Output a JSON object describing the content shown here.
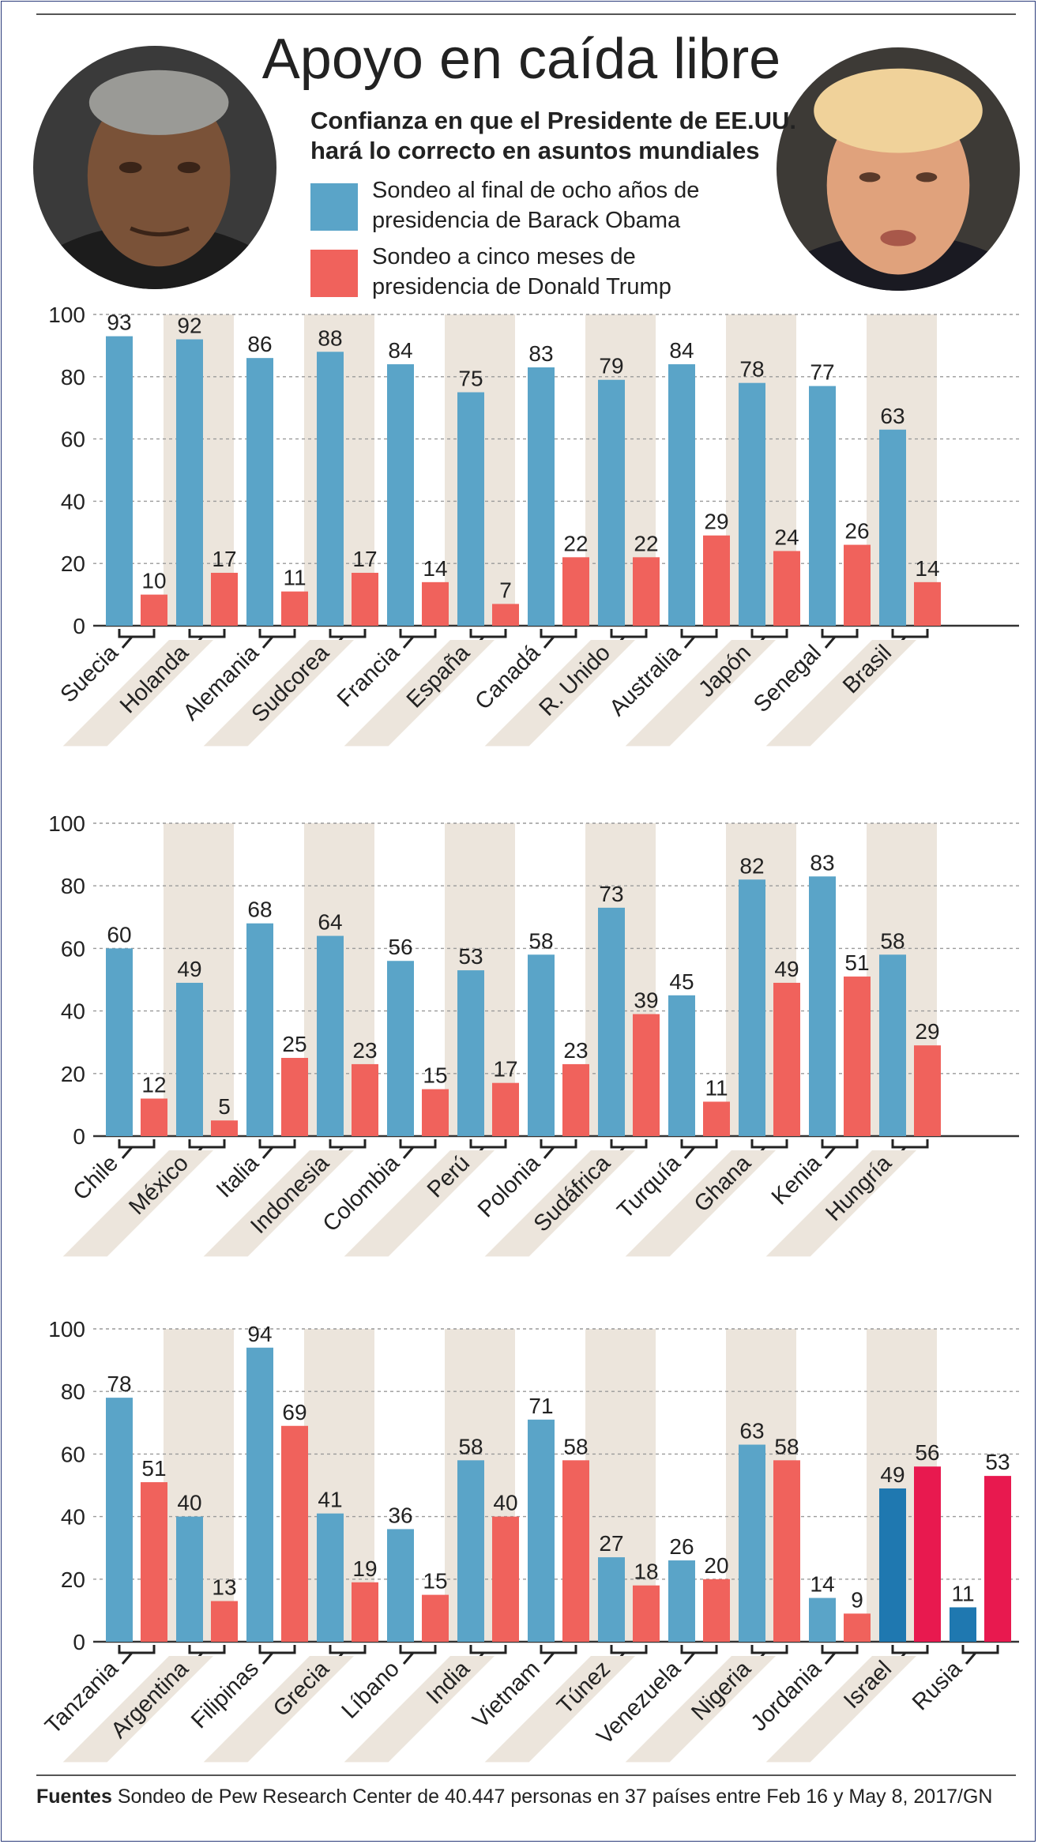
{
  "header": {
    "title": "Apoyo en caída libre",
    "subtitle_line1": "Confianza en que el Presidente de EE.UU.",
    "subtitle_line2": "hará lo correcto en asuntos mundiales"
  },
  "legend": [
    {
      "line1": "Sondeo al final de ocho años de",
      "line2": "presidencia de Barack Obama",
      "color": "#5aa4c8"
    },
    {
      "line1": "Sondeo a cinco meses de",
      "line2": "presidencia de Donald Trump",
      "color": "#f0625c"
    }
  ],
  "colors": {
    "obama": "#5aa4c8",
    "trump": "#f0625c",
    "obama_highlight": "#1f78b0",
    "trump_highlight": "#e8194f",
    "stripe": "#ece5dc"
  },
  "footer": {
    "source_label": "Fuentes",
    "source_text": "Sondeo de Pew Research Center de 40.447 personas en 37 países entre Feb 16 y May 8, 2017/GN"
  },
  "chart_data": [
    {
      "type": "bar",
      "categories": [
        "Suecia",
        "Holanda",
        "Alemania",
        "Sudcorea",
        "Francia",
        "España",
        "Canadá",
        "R. Unido",
        "Australia",
        "Japón",
        "Senegal",
        "Brasil"
      ],
      "series": [
        {
          "name": "Sondeo al final de ocho años de presidencia de Barack Obama",
          "values": [
            93,
            92,
            86,
            88,
            84,
            75,
            83,
            79,
            84,
            78,
            77,
            63
          ]
        },
        {
          "name": "Sondeo a cinco meses de presidencia de Donald Trump",
          "values": [
            10,
            17,
            11,
            17,
            14,
            7,
            22,
            22,
            29,
            24,
            26,
            14
          ]
        }
      ],
      "ylim": [
        0,
        100
      ],
      "yticks": [
        0,
        20,
        40,
        60,
        80,
        100
      ],
      "grid": true
    },
    {
      "type": "bar",
      "categories": [
        "Chile",
        "México",
        "Italia",
        "Indonesia",
        "Colombia",
        "Perú",
        "Polonia",
        "Sudáfrica",
        "Turquía",
        "Ghana",
        "Kenia",
        "Hungría"
      ],
      "series": [
        {
          "name": "Sondeo al final de ocho años de presidencia de Barack Obama",
          "values": [
            60,
            49,
            68,
            64,
            56,
            53,
            58,
            73,
            45,
            82,
            83,
            58
          ]
        },
        {
          "name": "Sondeo a cinco meses de presidencia de Donald Trump",
          "values": [
            12,
            5,
            25,
            23,
            15,
            17,
            23,
            39,
            11,
            49,
            51,
            29
          ]
        }
      ],
      "ylim": [
        0,
        100
      ],
      "yticks": [
        0,
        20,
        40,
        60,
        80,
        100
      ],
      "grid": true
    },
    {
      "type": "bar",
      "categories": [
        "Tanzania",
        "Argentina",
        "Filipinas",
        "Grecia",
        "Líbano",
        "India",
        "Vietnam",
        "Túnez",
        "Venezuela",
        "Nigeria",
        "Jordania",
        "Israel",
        "Rusia"
      ],
      "series": [
        {
          "name": "Sondeo al final de ocho años de presidencia de Barack Obama",
          "values": [
            78,
            40,
            94,
            41,
            36,
            58,
            71,
            27,
            26,
            63,
            14,
            49,
            11
          ]
        },
        {
          "name": "Sondeo a cinco meses de presidencia de Donald Trump",
          "values": [
            51,
            13,
            69,
            19,
            15,
            40,
            58,
            18,
            20,
            58,
            9,
            56,
            53
          ]
        }
      ],
      "highlighted": [
        "Israel",
        "Rusia"
      ],
      "ylim": [
        0,
        100
      ],
      "yticks": [
        0,
        20,
        40,
        60,
        80,
        100
      ],
      "grid": true
    }
  ]
}
